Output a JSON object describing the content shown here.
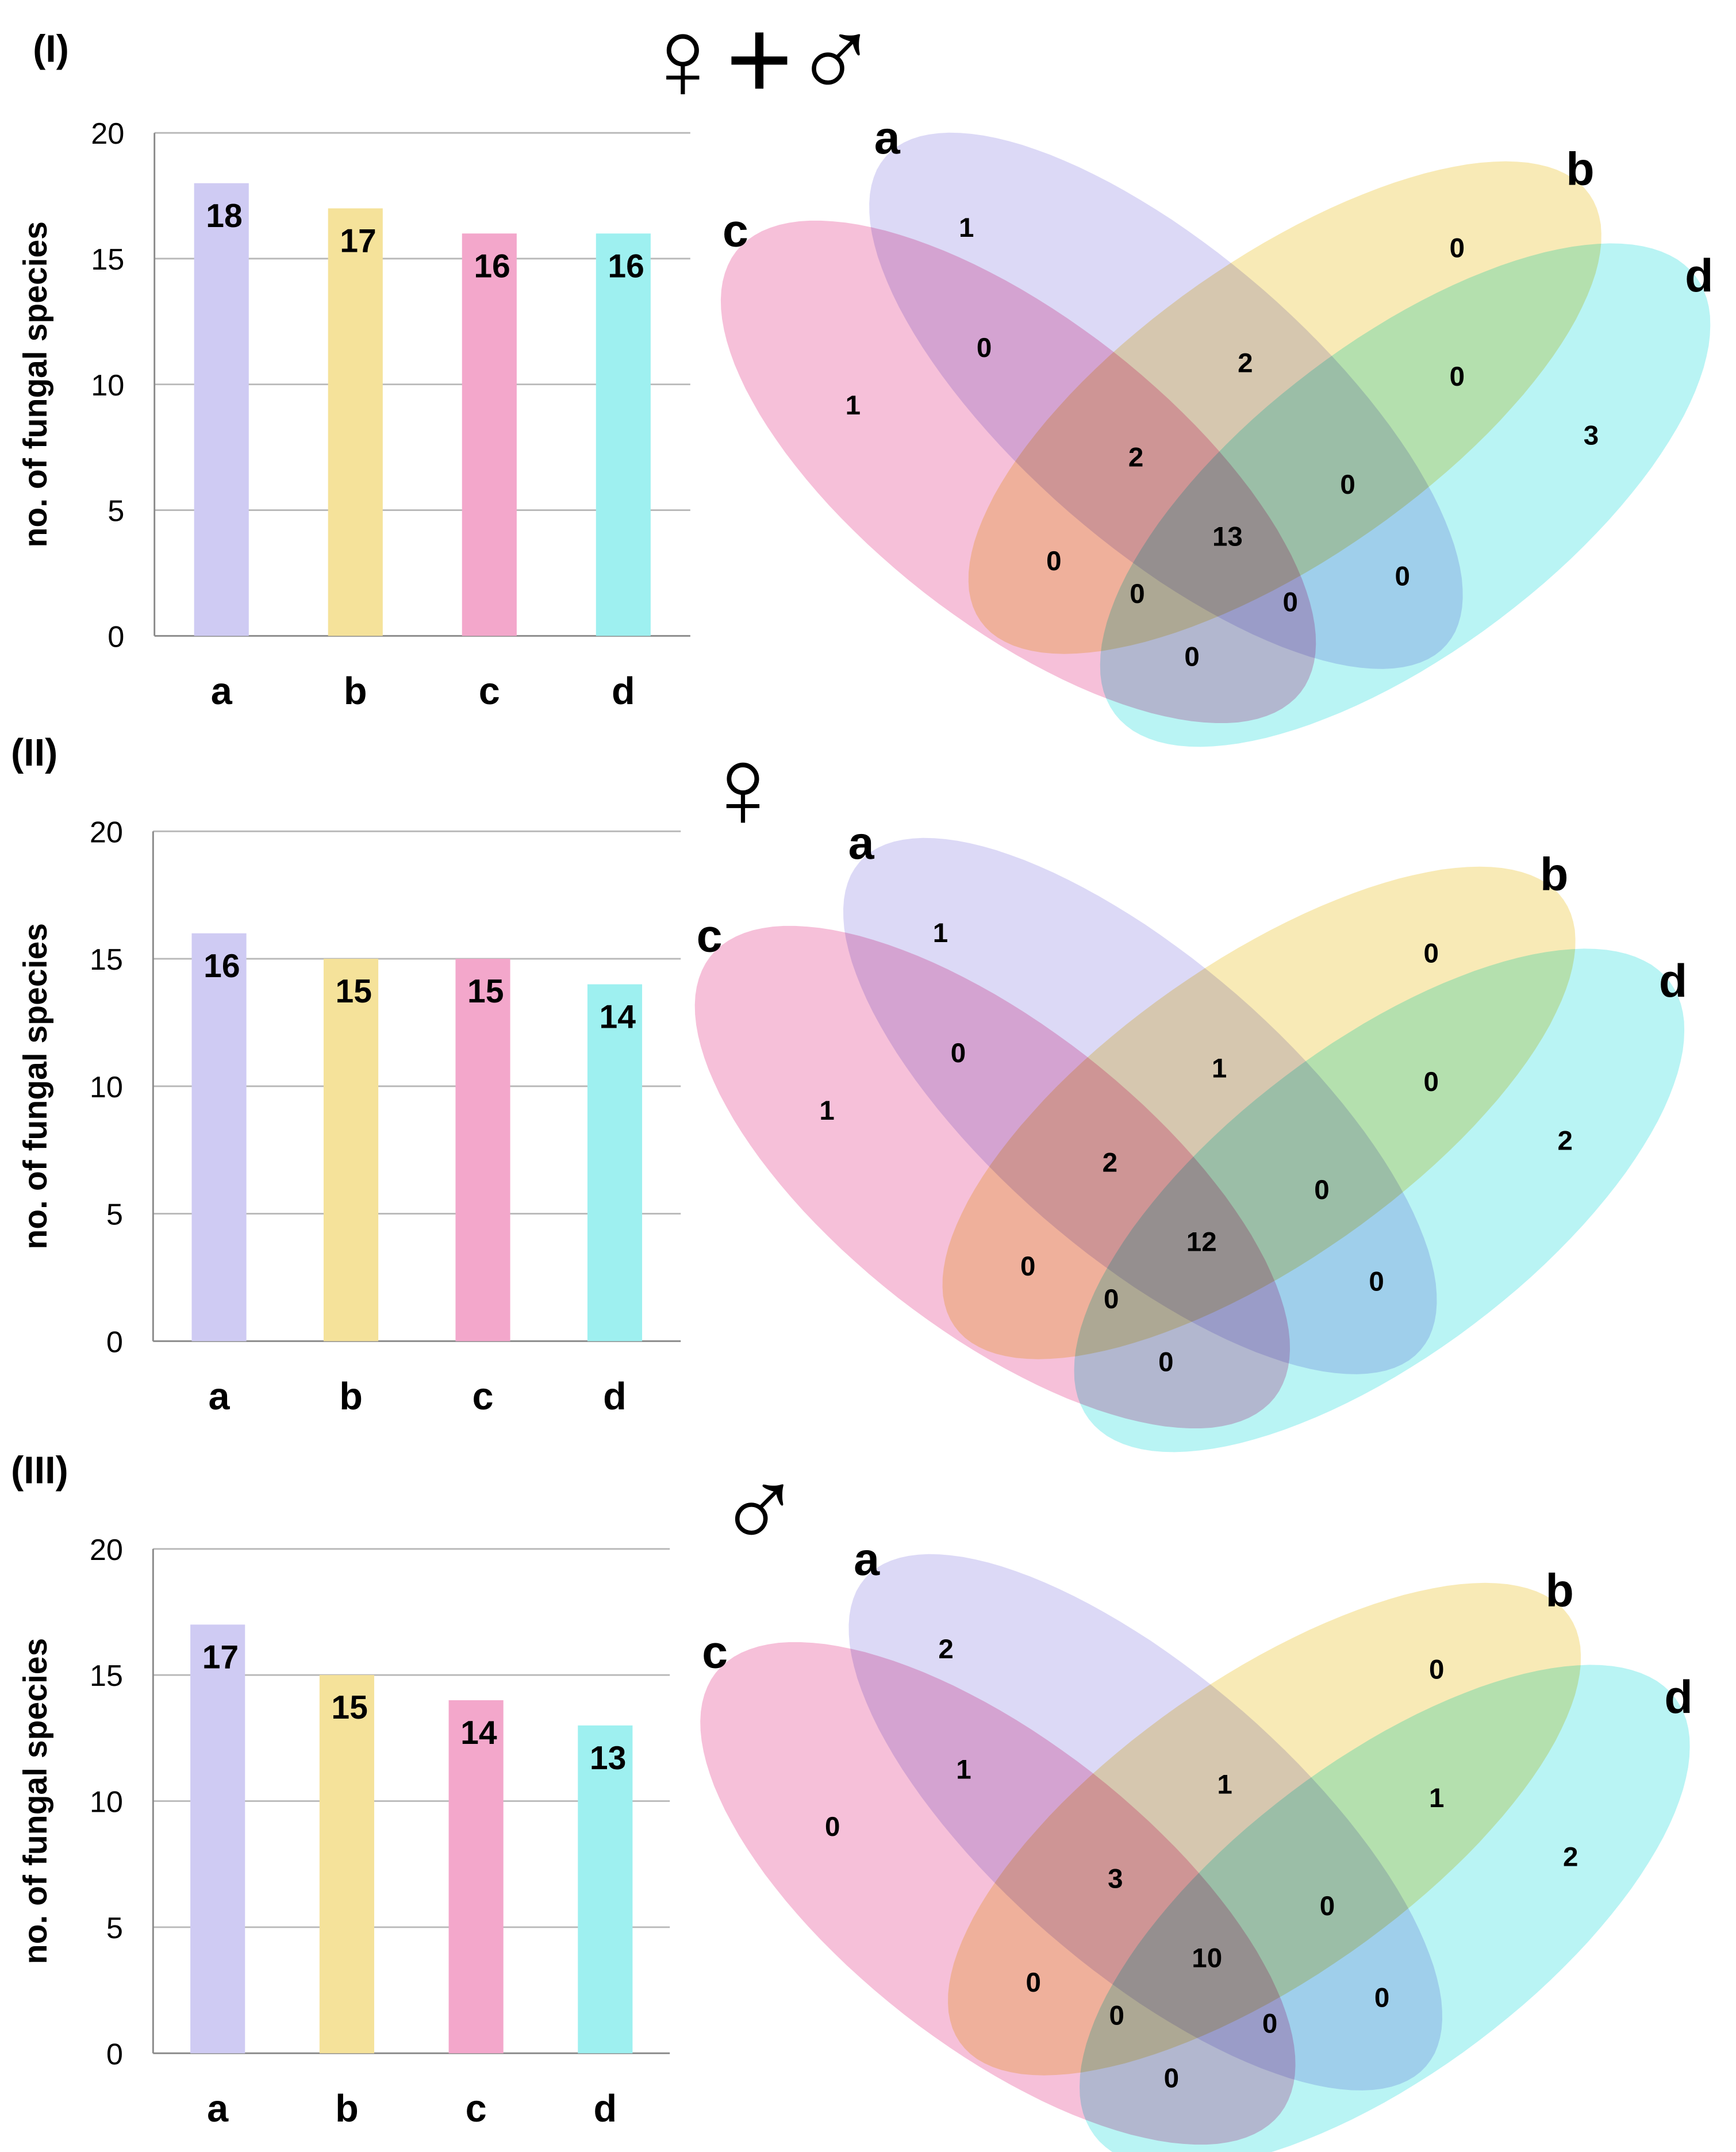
{
  "colors": {
    "a": "#cfcbf3",
    "b": "#f5e29a",
    "c": "#f3a7cb",
    "d": "#9ef0f0",
    "grid": "#b8b8b8",
    "axis": "#888888"
  },
  "chart_data": [
    {
      "type": "bar",
      "panel_label": "(I)",
      "symbol": "♀+♂",
      "ylabel": "no. of fungal species",
      "ylim": [
        0,
        20
      ],
      "yticks": [
        "0",
        "5",
        "10",
        "15",
        "20"
      ],
      "grid": true,
      "categories": [
        "a",
        "b",
        "c",
        "d"
      ],
      "values": [
        18,
        17,
        16,
        16
      ],
      "venn": {
        "sets": [
          "a",
          "b",
          "c",
          "d"
        ],
        "regions": {
          "a": 1,
          "b": 0,
          "c": 1,
          "d": 3,
          "ac": 0,
          "ab": 2,
          "bd": 0,
          "abc": 2,
          "abd": 0,
          "abcd": 13,
          "bc": 0,
          "bcd": 0,
          "acd": 0,
          "ad": 0,
          "cd": 0
        }
      }
    },
    {
      "type": "bar",
      "panel_label": "(II)",
      "symbol": "♀",
      "ylabel": "no. of fungal species",
      "ylim": [
        0,
        20
      ],
      "yticks": [
        "0",
        "5",
        "10",
        "15",
        "20"
      ],
      "grid": true,
      "categories": [
        "a",
        "b",
        "c",
        "d"
      ],
      "values": [
        16,
        15,
        15,
        14
      ],
      "venn": {
        "sets": [
          "a",
          "b",
          "c",
          "d"
        ],
        "regions": {
          "a": 1,
          "b": 0,
          "c": 1,
          "d": 2,
          "ac": 0,
          "ab": 1,
          "bd": 0,
          "abc": 2,
          "abd": 0,
          "abcd": 12,
          "bc": 0,
          "bcd": 0,
          "acd": null,
          "ad": 0,
          "cd": 0
        }
      }
    },
    {
      "type": "bar",
      "panel_label": "(III)",
      "symbol": "♂",
      "ylabel": "no. of fungal species",
      "ylim": [
        0,
        20
      ],
      "yticks": [
        "0",
        "5",
        "10",
        "15",
        "20"
      ],
      "grid": true,
      "categories": [
        "a",
        "b",
        "c",
        "d"
      ],
      "values": [
        17,
        15,
        14,
        13
      ],
      "venn": {
        "sets": [
          "a",
          "b",
          "c",
          "d"
        ],
        "regions": {
          "a": 2,
          "b": 0,
          "c": 0,
          "d": 2,
          "ac": 1,
          "ab": 1,
          "bd": 1,
          "abc": 3,
          "abd": 0,
          "abcd": 10,
          "bc": 0,
          "bcd": 0,
          "acd": 0,
          "ad": 0,
          "cd": 0
        }
      }
    }
  ]
}
